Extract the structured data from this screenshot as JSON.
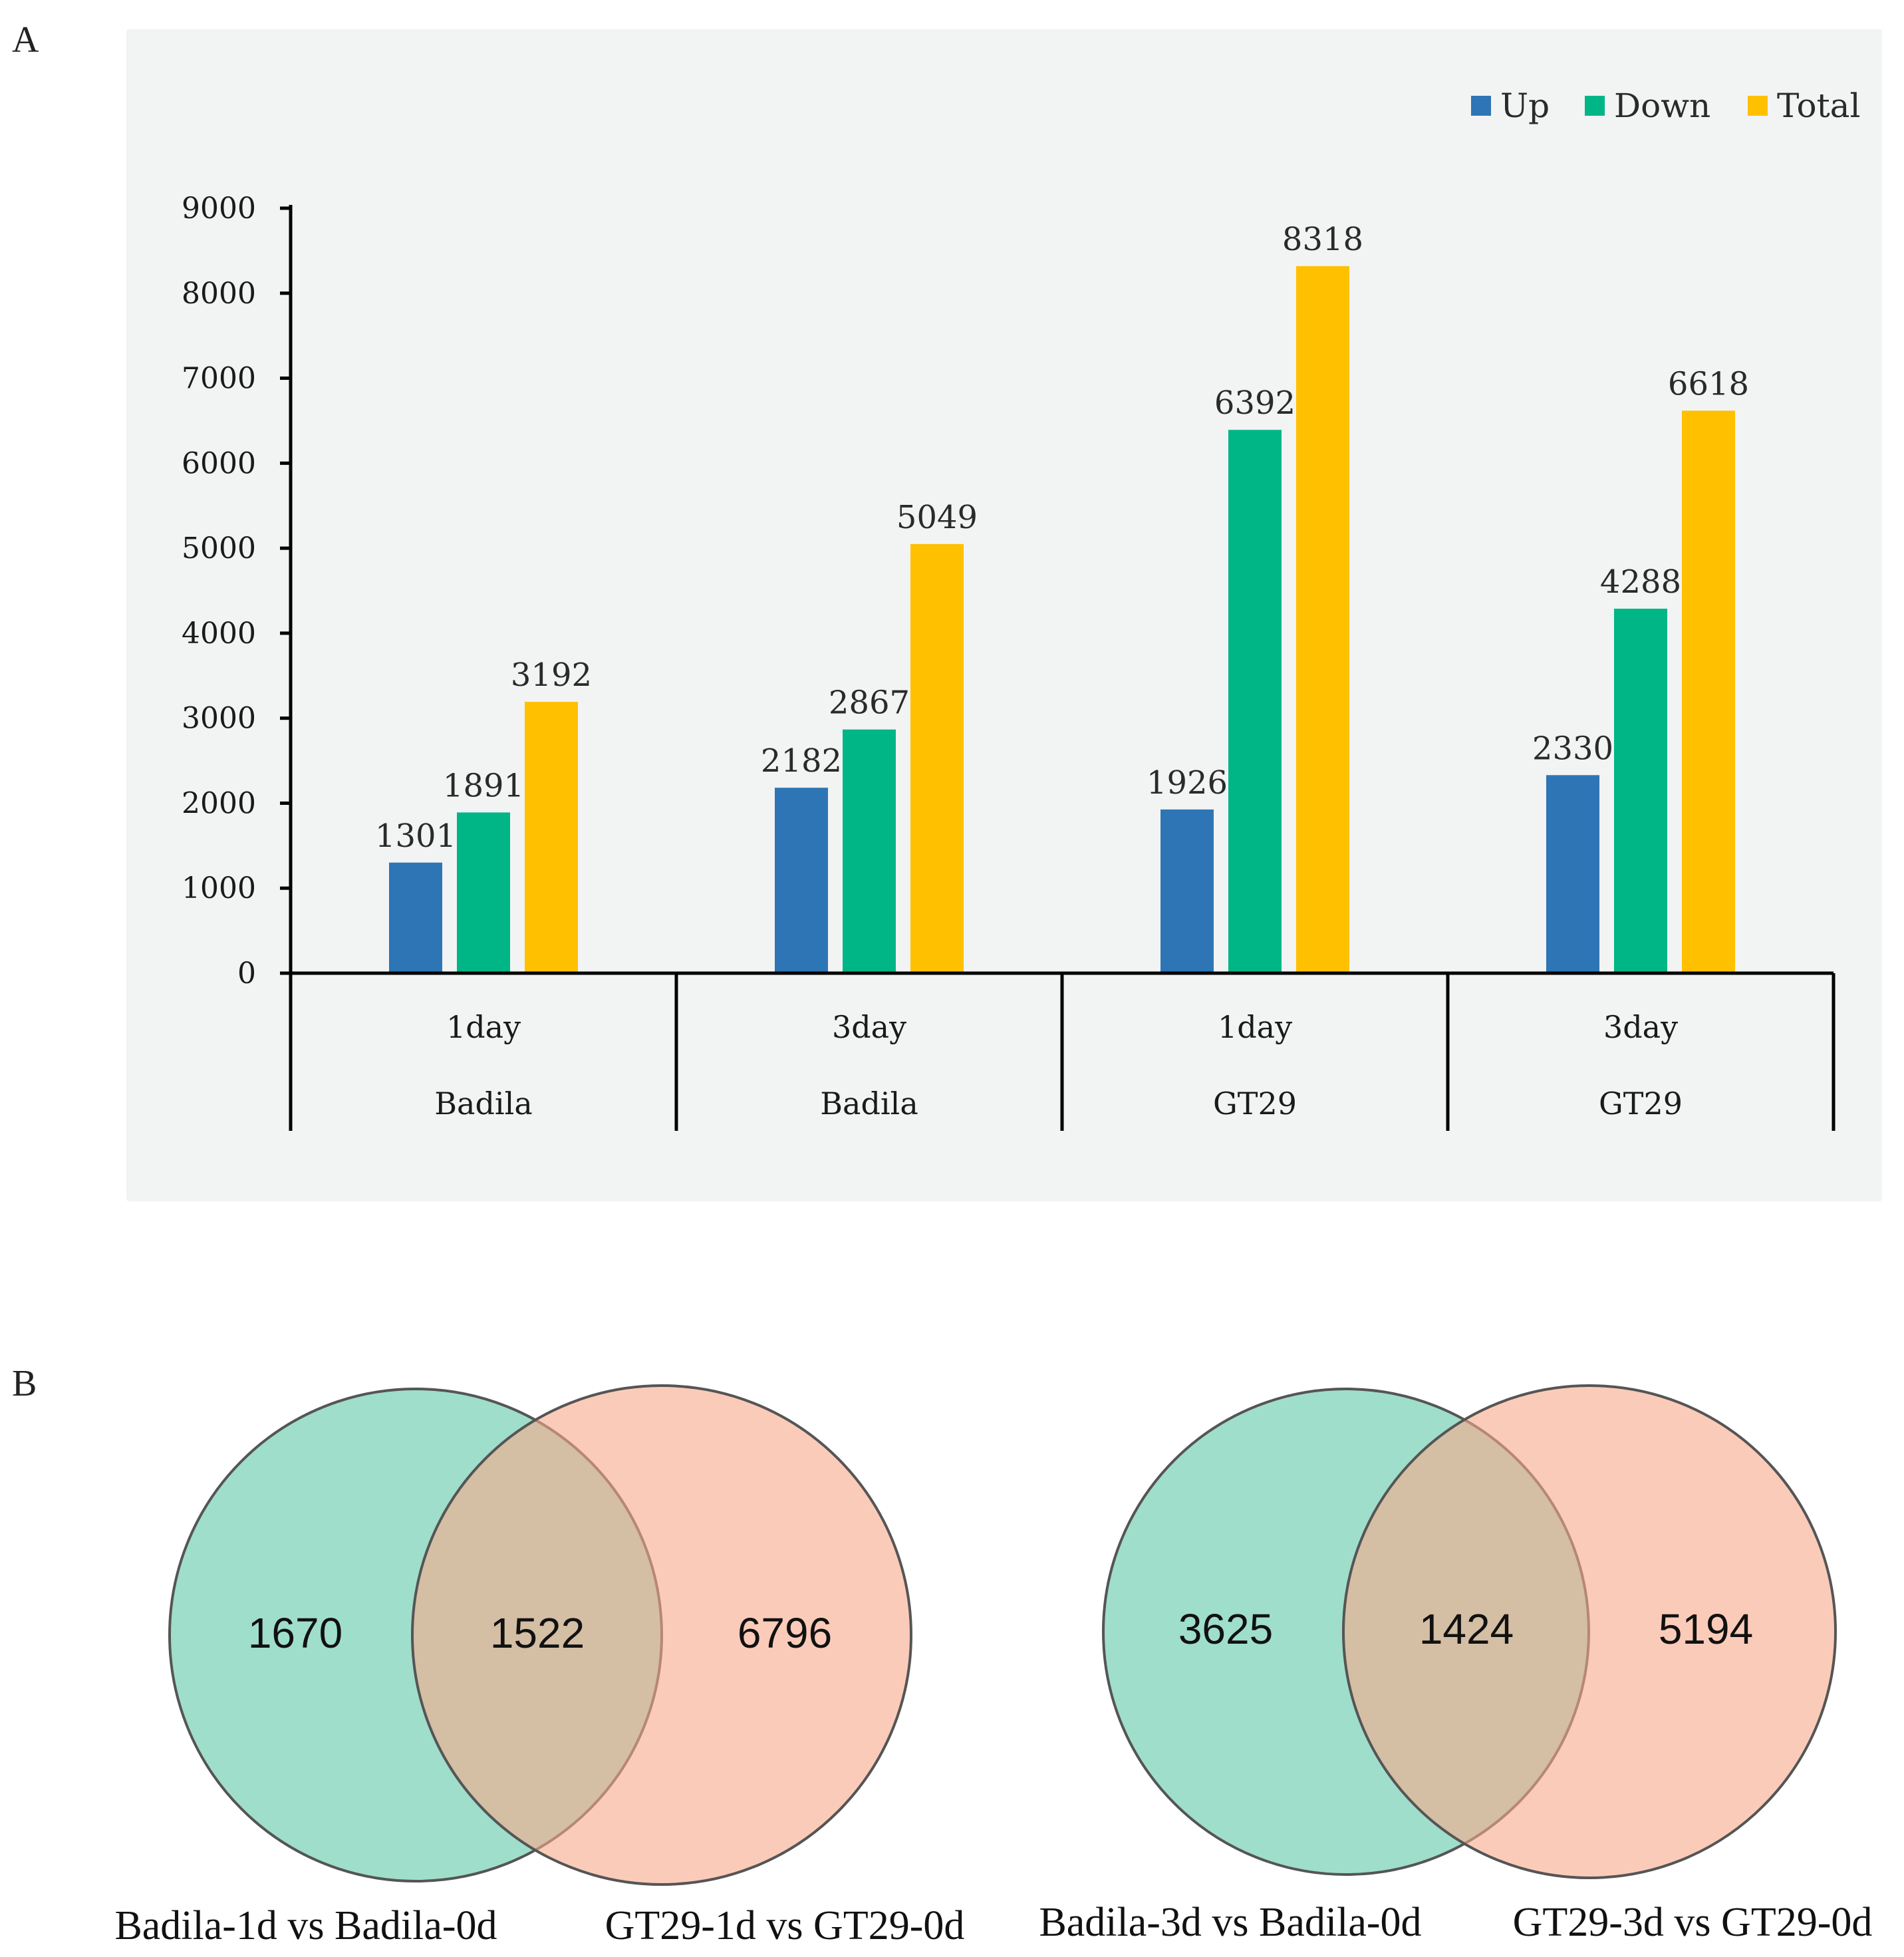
{
  "panels": {
    "a_letter": "A",
    "b_letter": "B"
  },
  "colors": {
    "up": "#2e75b6",
    "down": "#00b686",
    "total": "#ffc000",
    "venn_left": "#7fd3b8",
    "venn_right": "#f9a98a",
    "plot_bg": "#f2f3f3"
  },
  "chart_data": {
    "type": "bar",
    "title": "",
    "xlabel": "",
    "ylabel": "",
    "ylim": [
      0,
      9000
    ],
    "yticks": [
      "0",
      "1000",
      "2000",
      "3000",
      "4000",
      "5000",
      "6000",
      "7000",
      "8000",
      "9000"
    ],
    "categories": [
      "1day",
      "3day",
      "1day",
      "3day"
    ],
    "groups": [
      "Badila",
      "Badila",
      "GT29",
      "GT29"
    ],
    "legend_position": "top-right",
    "series": [
      {
        "name": "Up",
        "values": [
          1301,
          2182,
          1926,
          2330
        ]
      },
      {
        "name": "Down",
        "values": [
          1891,
          2867,
          6392,
          4288
        ]
      },
      {
        "name": "Total",
        "values": [
          3192,
          5049,
          8318,
          6618
        ]
      }
    ],
    "data_labels": [
      [
        "1301",
        "2182",
        "1926",
        "2330"
      ],
      [
        "1891",
        "2867",
        "6392",
        "4288"
      ],
      [
        "3192",
        "5049",
        "8318",
        "6618"
      ]
    ]
  },
  "venn": [
    {
      "left_only": "1670",
      "overlap": "1522",
      "right_only": "6796",
      "left_caption": "Badila-1d vs Badila-0d",
      "right_caption": "GT29-1d vs GT29-0d"
    },
    {
      "left_only": "3625",
      "overlap": "1424",
      "right_only": "5194",
      "left_caption": "Badila-3d vs Badila-0d",
      "right_caption": "GT29-3d vs GT29-0d"
    }
  ]
}
